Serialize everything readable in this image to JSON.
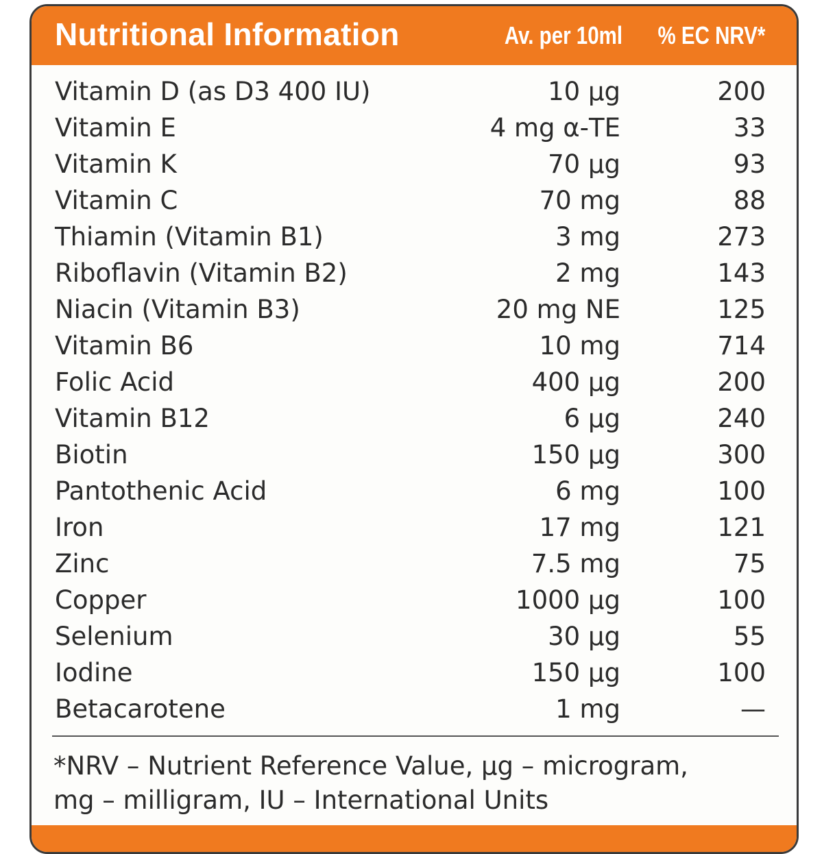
{
  "header": {
    "title": "Nutritional Information",
    "amount_label": "Av. per 10ml",
    "nrv_label": "% EC NRV*"
  },
  "rows": [
    {
      "name": "Vitamin D (as D3 400 IU)",
      "amount": "10 µg",
      "nrv": "200"
    },
    {
      "name": "Vitamin E",
      "amount": "4 mg α-TE",
      "nrv": "33"
    },
    {
      "name": "Vitamin K",
      "amount": "70 µg",
      "nrv": "93"
    },
    {
      "name": "Vitamin C",
      "amount": "70 mg",
      "nrv": "88"
    },
    {
      "name": "Thiamin (Vitamin B1)",
      "amount": "3 mg",
      "nrv": "273"
    },
    {
      "name": "Riboflavin (Vitamin B2)",
      "amount": "2 mg",
      "nrv": "143"
    },
    {
      "name": "Niacin (Vitamin B3)",
      "amount": "20 mg NE",
      "nrv": "125"
    },
    {
      "name": "Vitamin B6",
      "amount": "10 mg",
      "nrv": "714"
    },
    {
      "name": "Folic Acid",
      "amount": "400 µg",
      "nrv": "200"
    },
    {
      "name": "Vitamin B12",
      "amount": "6 µg",
      "nrv": "240"
    },
    {
      "name": "Biotin",
      "amount": "150 µg",
      "nrv": "300"
    },
    {
      "name": "Pantothenic Acid",
      "amount": "6 mg",
      "nrv": "100"
    },
    {
      "name": "Iron",
      "amount": "17 mg",
      "nrv": "121"
    },
    {
      "name": "Zinc",
      "amount": "7.5 mg",
      "nrv": "75"
    },
    {
      "name": "Copper",
      "amount": "1000 µg",
      "nrv": "100"
    },
    {
      "name": "Selenium",
      "amount": "30 µg",
      "nrv": "55"
    },
    {
      "name": "Iodine",
      "amount": "150 µg",
      "nrv": "100"
    },
    {
      "name": "Betacarotene",
      "amount": "1 mg",
      "nrv": "—"
    }
  ],
  "footnote": {
    "line1": "*NRV – Nutrient Reference Value, µg – microgram,",
    "line2": "mg – milligram, IU – International Units"
  },
  "colors": {
    "accent": "#f07a1f",
    "text": "#2b2b2b",
    "border": "#3a3a3a"
  }
}
